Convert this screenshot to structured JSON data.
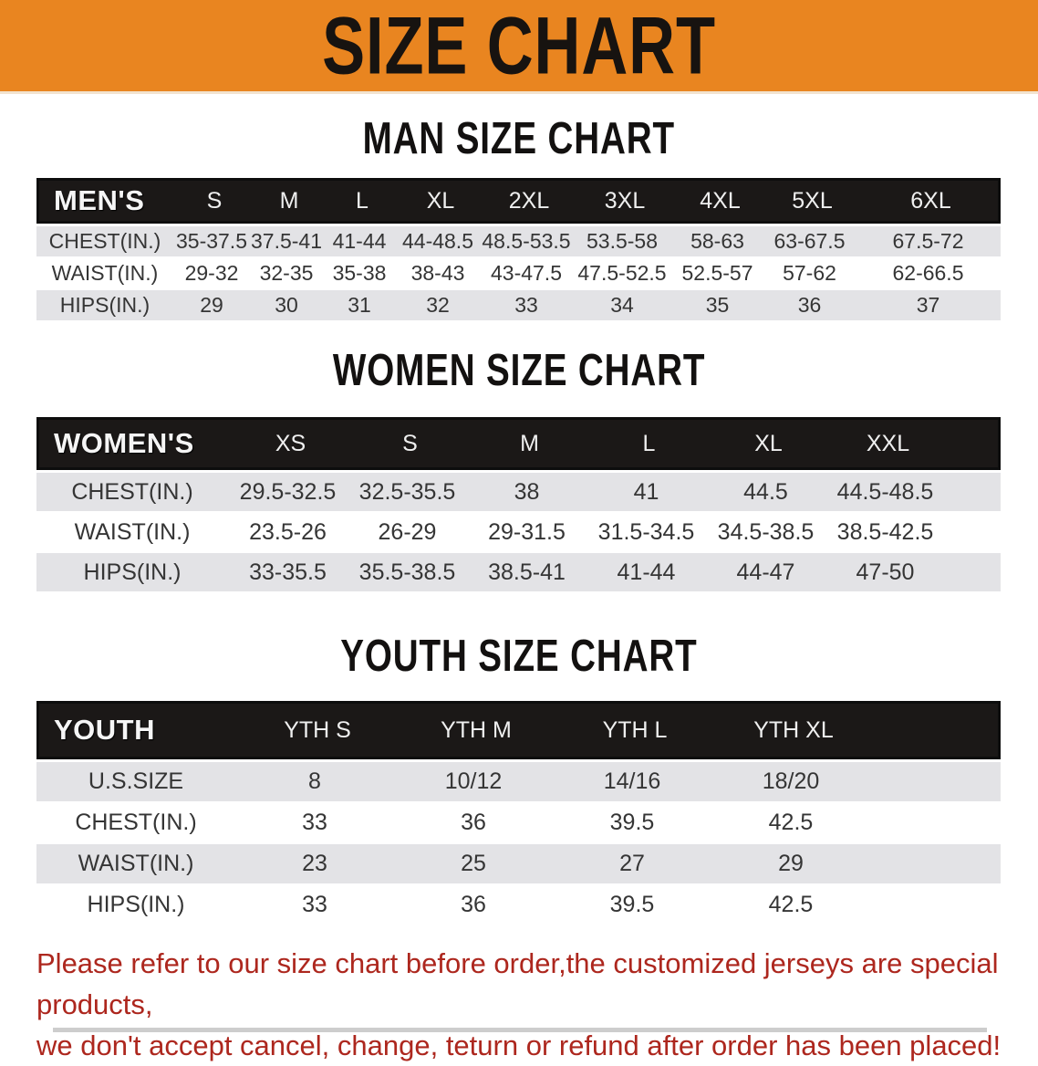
{
  "banner": {
    "title": "SIZE CHART"
  },
  "colors": {
    "banner_bg": "#e98520",
    "table_header_bg": "#1b1817",
    "row_stripe": "#e3e3e6",
    "note_red": "#ad271e"
  },
  "sections": [
    {
      "key": "men",
      "title": "MAN SIZE CHART",
      "corner_label": "MEN'S",
      "columns": [
        "S",
        "M",
        "L",
        "XL",
        "2XL",
        "3XL",
        "4XL",
        "5XL",
        "6XL"
      ],
      "rows": [
        {
          "label": "CHEST(IN.)",
          "values": [
            "35-37.5",
            "37.5-41",
            "41-44",
            "44-48.5",
            "48.5-53.5",
            "53.5-58",
            "58-63",
            "63-67.5",
            "67.5-72"
          ]
        },
        {
          "label": "WAIST(IN.)",
          "values": [
            "29-32",
            "32-35",
            "35-38",
            "38-43",
            "43-47.5",
            "47.5-52.5",
            "52.5-57",
            "57-62",
            "62-66.5"
          ]
        },
        {
          "label": "HIPS(IN.)",
          "values": [
            "29",
            "30",
            "31",
            "32",
            "33",
            "34",
            "35",
            "36",
            "37"
          ]
        }
      ]
    },
    {
      "key": "women",
      "title": "WOMEN SIZE CHART",
      "corner_label": "WOMEN'S",
      "columns": [
        "XS",
        "S",
        "M",
        "L",
        "XL",
        "XXL"
      ],
      "rows": [
        {
          "label": "CHEST(IN.)",
          "values": [
            "29.5-32.5",
            "32.5-35.5",
            "38",
            "41",
            "44.5",
            "44.5-48.5"
          ]
        },
        {
          "label": "WAIST(IN.)",
          "values": [
            "23.5-26",
            "26-29",
            "29-31.5",
            "31.5-34.5",
            "34.5-38.5",
            "38.5-42.5"
          ]
        },
        {
          "label": "HIPS(IN.)",
          "values": [
            "33-35.5",
            "35.5-38.5",
            "38.5-41",
            "41-44",
            "44-47",
            "47-50"
          ]
        }
      ]
    },
    {
      "key": "youth",
      "title": "YOUTH SIZE CHART",
      "corner_label": "YOUTH",
      "columns": [
        "YTH S",
        "YTH M",
        "YTH L",
        "YTH XL"
      ],
      "rows": [
        {
          "label": "U.S.SIZE",
          "values": [
            "8",
            "10/12",
            "14/16",
            "18/20"
          ]
        },
        {
          "label": "CHEST(IN.)",
          "values": [
            "33",
            "36",
            "39.5",
            "42.5"
          ]
        },
        {
          "label": "WAIST(IN.)",
          "values": [
            "23",
            "25",
            "27",
            "29"
          ]
        },
        {
          "label": "HIPS(IN.)",
          "values": [
            "33",
            "36",
            "39.5",
            "42.5"
          ]
        }
      ]
    }
  ],
  "footer_note": {
    "line1": "Please refer to our size chart before order,the customized jerseys are special products,",
    "line2": "we don't accept cancel, change, teturn or refund after order has been placed!"
  }
}
